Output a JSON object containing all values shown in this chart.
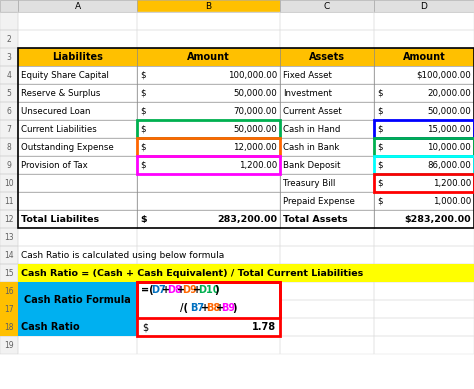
{
  "fig_width": 4.74,
  "fig_height": 3.89,
  "bg_color": "#ffffff",
  "header_bg": "#FFC000",
  "cyan_bg": "#00B0F0",
  "yellow_bg": "#FFFF00",
  "col_letters": [
    "",
    "A",
    "B",
    "C",
    "D"
  ],
  "formula_tokens_l1": [
    "=(",
    "D7",
    "+",
    "D8",
    "+",
    "D9",
    "+",
    "D10",
    ")"
  ],
  "formula_colors_l1": [
    "#000000",
    "#0070C0",
    "#000000",
    "#FF00FF",
    "#000000",
    "#FF6600",
    "#000000",
    "#00B050",
    "#000000"
  ],
  "formula_tokens_l2": [
    "/(",
    "B7",
    "+",
    "B8",
    "+",
    "B9",
    ")"
  ],
  "formula_colors_l2": [
    "#000000",
    "#0070C0",
    "#000000",
    "#FF6600",
    "#000000",
    "#FF00FF",
    "#000000"
  ]
}
